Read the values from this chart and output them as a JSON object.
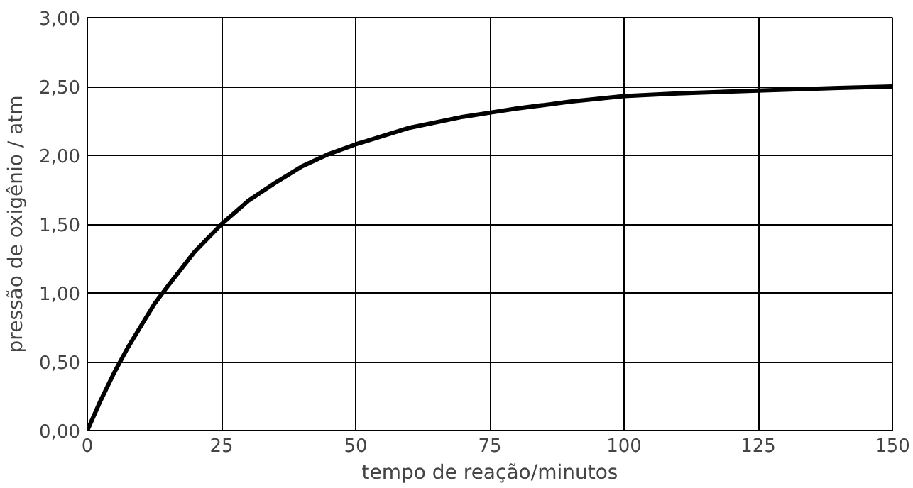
{
  "chart_data": {
    "type": "line",
    "xlabel": "tempo de reação/minutos",
    "ylabel": "pressão de oxigênio / atm",
    "series": [
      {
        "color": "#000000",
        "x": [
          0,
          2.5,
          5,
          7.5,
          10,
          12.5,
          15,
          20,
          25,
          30,
          35,
          40,
          45,
          50,
          60,
          70,
          75,
          80,
          90,
          100,
          110,
          125,
          140,
          150
        ],
        "values": [
          0,
          0.22,
          0.42,
          0.6,
          0.76,
          0.92,
          1.05,
          1.3,
          1.5,
          1.67,
          1.8,
          1.92,
          2.01,
          2.08,
          2.2,
          2.28,
          2.31,
          2.34,
          2.39,
          2.43,
          2.45,
          2.47,
          2.49,
          2.5
        ]
      }
    ],
    "xlim": [
      0,
      150
    ],
    "xticks": [
      0,
      25,
      50,
      75,
      100,
      125,
      150
    ],
    "ylim": [
      0,
      3
    ],
    "yticks": [
      {
        "value": 0,
        "label": "0,00"
      },
      {
        "value": 0.5,
        "label": "0,50"
      },
      {
        "value": 1,
        "label": "1,00"
      },
      {
        "value": 1.5,
        "label": "1,50"
      },
      {
        "value": 2,
        "label": "2,00"
      },
      {
        "value": 2.5,
        "label": "2,50"
      },
      {
        "value": 3,
        "label": "3,00"
      }
    ],
    "grid": true,
    "marker": "none",
    "line_style": "solid"
  }
}
